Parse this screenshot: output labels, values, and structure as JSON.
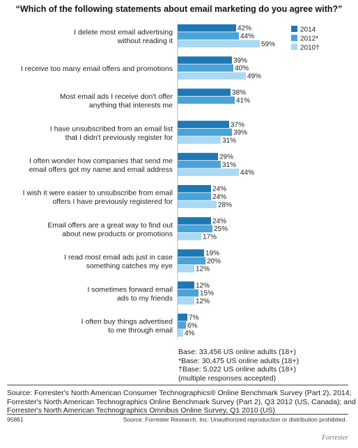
{
  "title": "“Which of the following statements about email marketing do you agree with?”",
  "chart_data": {
    "type": "bar",
    "orientation": "horizontal",
    "categories": [
      [
        "I delete most email advertising",
        "without reading it"
      ],
      [
        "I receive too many email offers and promotions"
      ],
      [
        "Most email ads I receive don't offer",
        "anything that interests me"
      ],
      [
        "I have unsubscribed from an email list",
        "that I didn't previously register for"
      ],
      [
        "I often wonder how companies that send me",
        "email offers got my name and email address"
      ],
      [
        "I wish it were easier to unsubscribe from email",
        "offers I have previously registered for"
      ],
      [
        "Email offers are a great way to find out",
        "about new products or promotions"
      ],
      [
        "I read most email ads just in case",
        "something catches my eye"
      ],
      [
        "I sometimes forward email",
        "ads to my friends"
      ],
      [
        "I often buy things advertised",
        "to me through email"
      ]
    ],
    "series": [
      {
        "name": "2014",
        "color": "#1f78b4",
        "values": [
          42,
          39,
          38,
          37,
          29,
          24,
          24,
          19,
          12,
          7
        ]
      },
      {
        "name": "2012*",
        "color": "#4aa3d8",
        "values": [
          44,
          40,
          41,
          39,
          31,
          24,
          25,
          20,
          15,
          6
        ]
      },
      {
        "name": "2010†",
        "color": "#a9d9f4",
        "values": [
          59,
          49,
          null,
          31,
          44,
          28,
          17,
          12,
          12,
          4
        ]
      }
    ],
    "value_suffix": "%",
    "legend": "top-right",
    "xlim": [
      0,
      100
    ],
    "grid": false
  },
  "base_notes": [
    "Base: 33,456 US online adults (18+)",
    "*Base: 30,475 US online adults (18+)",
    "†Base: 5,022 US online adults (18+)",
    "(multiple responses accepted)"
  ],
  "source_lines": [
    "Source: Forrester's North American Consumer Technographics® Online Benchmark Survey (Part 2), 2014;",
    "Forrester's North American Technographics Online Benchmark Survey (Part 2), Q3 2012 (US, Canada); and",
    "Forrester's North American Technographics Omnibus Online Survey, Q1 2010 (US)"
  ],
  "footer": {
    "id": "95861",
    "rights": "Source: Forrester Research, Inc. Unauthorized reproduction or distribution prohibited."
  },
  "brand": "Forrester"
}
